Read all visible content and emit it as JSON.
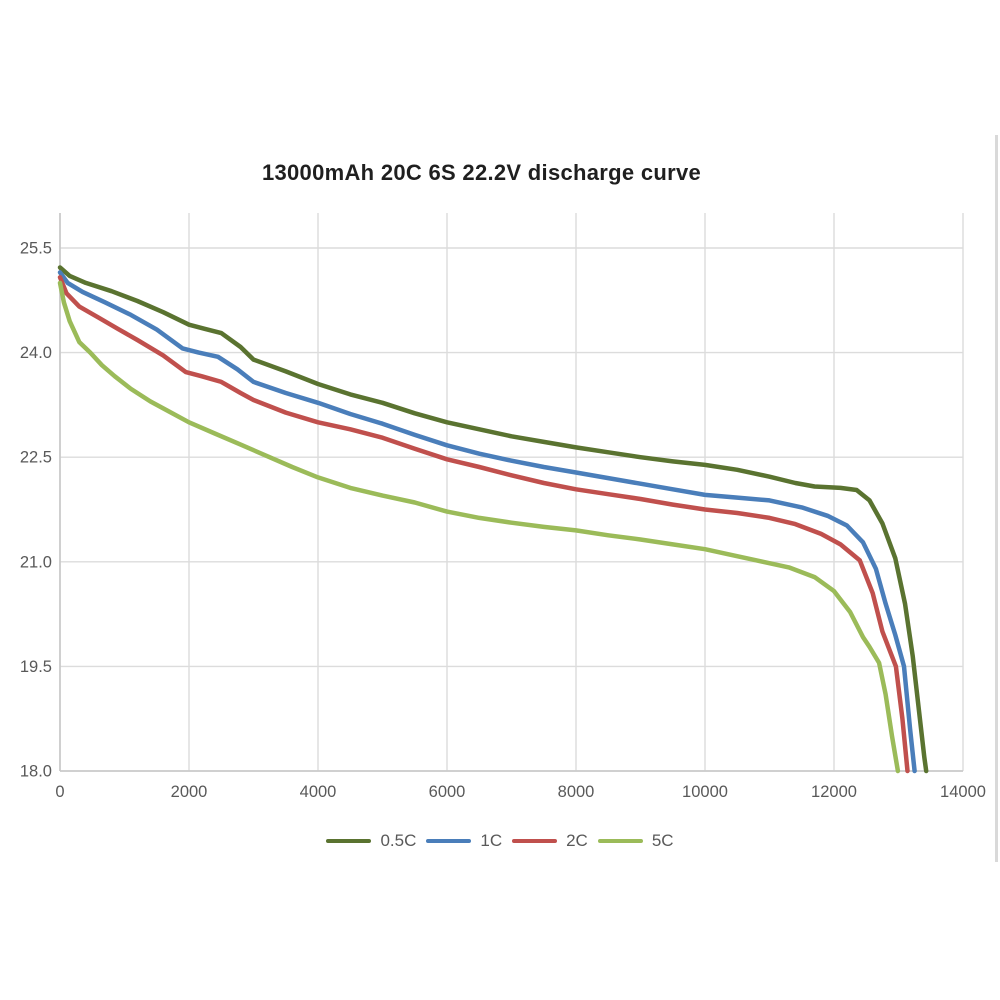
{
  "title": "13000mAh 20C 6S 22.2V discharge curve",
  "chart_data": {
    "type": "line",
    "title": "13000mAh 20C 6S 22.2V discharge curve",
    "xlabel": "",
    "ylabel": "",
    "xlim": [
      0,
      14000
    ],
    "ylim": [
      18.0,
      25.5
    ],
    "grid": true,
    "legend_position": "bottom",
    "x_ticks": [
      0,
      2000,
      4000,
      6000,
      8000,
      10000,
      12000,
      14000
    ],
    "x_tick_labels": [
      "0",
      "2000",
      "4000",
      "6000",
      "8000",
      "10000",
      "12000",
      "14000"
    ],
    "y_ticks": [
      18.0,
      19.5,
      21.0,
      22.5,
      24.0,
      25.5
    ],
    "y_tick_labels": [
      "18.0",
      "19.5",
      "21.0",
      "22.5",
      "24.0",
      "25.5"
    ],
    "axis_color": "#c9c9c9",
    "grid_color": "#dcdcdc",
    "tick_label_color": "#595959",
    "series": [
      {
        "name": "0.5C",
        "color": "#5a7330",
        "points": [
          [
            0,
            25.22
          ],
          [
            150,
            25.1
          ],
          [
            400,
            25.0
          ],
          [
            800,
            24.88
          ],
          [
            1200,
            24.74
          ],
          [
            1600,
            24.58
          ],
          [
            2000,
            24.4
          ],
          [
            2250,
            24.34
          ],
          [
            2500,
            24.28
          ],
          [
            2800,
            24.08
          ],
          [
            3000,
            23.9
          ],
          [
            3500,
            23.73
          ],
          [
            4000,
            23.55
          ],
          [
            4500,
            23.4
          ],
          [
            5000,
            23.28
          ],
          [
            5500,
            23.13
          ],
          [
            6000,
            23.0
          ],
          [
            6500,
            22.9
          ],
          [
            7000,
            22.8
          ],
          [
            7500,
            22.72
          ],
          [
            8000,
            22.64
          ],
          [
            8500,
            22.57
          ],
          [
            9000,
            22.5
          ],
          [
            9500,
            22.44
          ],
          [
            10000,
            22.39
          ],
          [
            10500,
            22.32
          ],
          [
            11000,
            22.22
          ],
          [
            11400,
            22.13
          ],
          [
            11700,
            22.08
          ],
          [
            12100,
            22.06
          ],
          [
            12350,
            22.03
          ],
          [
            12550,
            21.88
          ],
          [
            12750,
            21.55
          ],
          [
            12950,
            21.05
          ],
          [
            13100,
            20.4
          ],
          [
            13220,
            19.65
          ],
          [
            13320,
            18.85
          ],
          [
            13400,
            18.2
          ],
          [
            13430,
            18.0
          ]
        ]
      },
      {
        "name": "1C",
        "color": "#4a7eba",
        "points": [
          [
            0,
            25.15
          ],
          [
            120,
            25.0
          ],
          [
            350,
            24.87
          ],
          [
            700,
            24.72
          ],
          [
            1100,
            24.54
          ],
          [
            1500,
            24.33
          ],
          [
            1900,
            24.06
          ],
          [
            2150,
            24.0
          ],
          [
            2450,
            23.94
          ],
          [
            2750,
            23.76
          ],
          [
            3000,
            23.58
          ],
          [
            3500,
            23.42
          ],
          [
            4000,
            23.28
          ],
          [
            4500,
            23.12
          ],
          [
            5000,
            22.98
          ],
          [
            5500,
            22.82
          ],
          [
            6000,
            22.67
          ],
          [
            6500,
            22.55
          ],
          [
            7000,
            22.45
          ],
          [
            7500,
            22.36
          ],
          [
            8000,
            22.28
          ],
          [
            8500,
            22.2
          ],
          [
            9000,
            22.12
          ],
          [
            9500,
            22.04
          ],
          [
            10000,
            21.96
          ],
          [
            10500,
            21.92
          ],
          [
            11000,
            21.88
          ],
          [
            11500,
            21.78
          ],
          [
            11900,
            21.66
          ],
          [
            12200,
            21.52
          ],
          [
            12450,
            21.28
          ],
          [
            12650,
            20.9
          ],
          [
            12800,
            20.4
          ],
          [
            12950,
            19.95
          ],
          [
            13085,
            19.5
          ],
          [
            13180,
            18.6
          ],
          [
            13250,
            18.0
          ]
        ]
      },
      {
        "name": "2C",
        "color": "#c0504d",
        "points": [
          [
            0,
            25.08
          ],
          [
            100,
            24.85
          ],
          [
            300,
            24.66
          ],
          [
            600,
            24.5
          ],
          [
            900,
            24.34
          ],
          [
            1200,
            24.18
          ],
          [
            1600,
            23.96
          ],
          [
            1950,
            23.72
          ],
          [
            2200,
            23.66
          ],
          [
            2500,
            23.58
          ],
          [
            2800,
            23.42
          ],
          [
            3000,
            23.32
          ],
          [
            3500,
            23.14
          ],
          [
            4000,
            23.0
          ],
          [
            4500,
            22.9
          ],
          [
            5000,
            22.78
          ],
          [
            5500,
            22.62
          ],
          [
            6000,
            22.47
          ],
          [
            6500,
            22.36
          ],
          [
            7000,
            22.24
          ],
          [
            7500,
            22.13
          ],
          [
            8000,
            22.04
          ],
          [
            8500,
            21.97
          ],
          [
            9000,
            21.9
          ],
          [
            9500,
            21.82
          ],
          [
            10000,
            21.75
          ],
          [
            10500,
            21.7
          ],
          [
            11000,
            21.63
          ],
          [
            11400,
            21.54
          ],
          [
            11800,
            21.4
          ],
          [
            12100,
            21.25
          ],
          [
            12400,
            21.02
          ],
          [
            12600,
            20.55
          ],
          [
            12750,
            20.0
          ],
          [
            12960,
            19.5
          ],
          [
            13060,
            18.75
          ],
          [
            13140,
            18.0
          ]
        ]
      },
      {
        "name": "5C",
        "color": "#9bbb59",
        "points": [
          [
            0,
            25.0
          ],
          [
            60,
            24.72
          ],
          [
            150,
            24.45
          ],
          [
            300,
            24.15
          ],
          [
            470,
            24.0
          ],
          [
            650,
            23.82
          ],
          [
            850,
            23.66
          ],
          [
            1100,
            23.48
          ],
          [
            1400,
            23.3
          ],
          [
            1700,
            23.15
          ],
          [
            2000,
            23.0
          ],
          [
            2400,
            22.84
          ],
          [
            2800,
            22.68
          ],
          [
            3200,
            22.52
          ],
          [
            3600,
            22.36
          ],
          [
            4000,
            22.21
          ],
          [
            4500,
            22.06
          ],
          [
            5000,
            21.95
          ],
          [
            5500,
            21.85
          ],
          [
            6000,
            21.72
          ],
          [
            6500,
            21.63
          ],
          [
            7000,
            21.56
          ],
          [
            7500,
            21.5
          ],
          [
            8000,
            21.45
          ],
          [
            8500,
            21.38
          ],
          [
            9000,
            21.32
          ],
          [
            9500,
            21.25
          ],
          [
            10000,
            21.18
          ],
          [
            10400,
            21.1
          ],
          [
            10900,
            21.0
          ],
          [
            11300,
            20.92
          ],
          [
            11700,
            20.78
          ],
          [
            12000,
            20.58
          ],
          [
            12250,
            20.28
          ],
          [
            12450,
            19.92
          ],
          [
            12550,
            19.78
          ],
          [
            12700,
            19.55
          ],
          [
            12800,
            19.1
          ],
          [
            12900,
            18.5
          ],
          [
            12990,
            18.0
          ]
        ]
      }
    ]
  }
}
